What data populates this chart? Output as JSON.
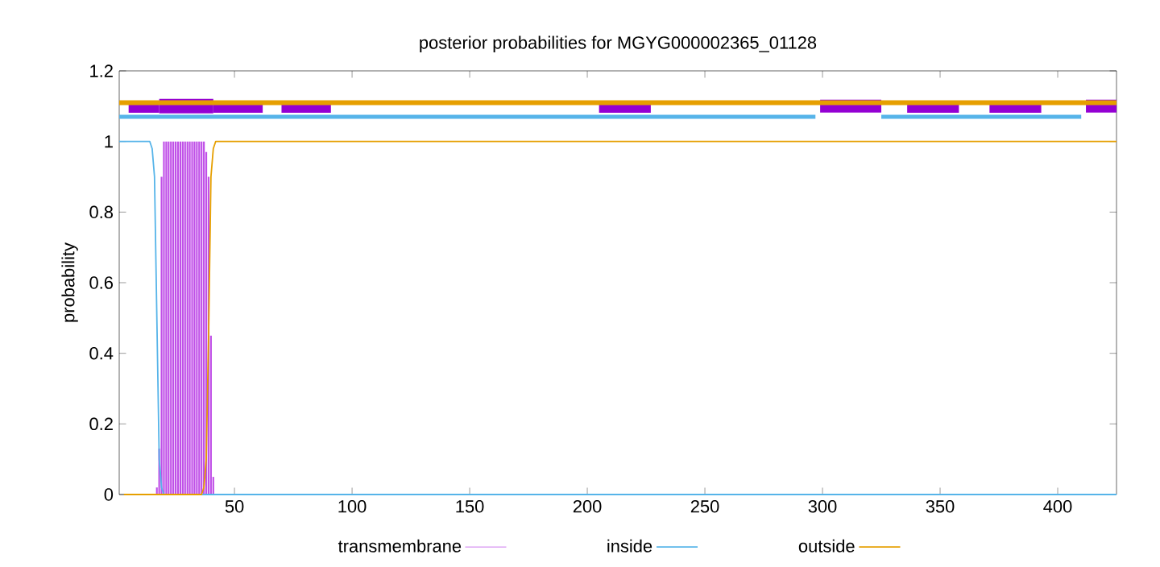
{
  "chart_data": {
    "type": "line",
    "title": "posterior probabilities for MGYG000002365_01128",
    "ylabel": "probability",
    "xlim": [
      1,
      425
    ],
    "ylim": [
      0,
      1.2
    ],
    "xticks": [
      50,
      100,
      150,
      200,
      250,
      300,
      350,
      400
    ],
    "yticks": [
      0,
      0.2,
      0.4,
      0.6,
      0.8,
      1,
      1.2
    ],
    "legend": "bottom",
    "grid": false,
    "series": [
      {
        "name": "transmembrane",
        "type": "bar",
        "color": "#c050e8",
        "x": [
          17,
          18,
          19,
          20,
          21,
          22,
          23,
          24,
          25,
          26,
          27,
          28,
          29,
          30,
          31,
          32,
          33,
          34,
          35,
          36,
          37,
          38,
          39,
          40,
          41
        ],
        "values": [
          0.02,
          0.13,
          0.9,
          1,
          1,
          1,
          1,
          1,
          1,
          1,
          1,
          1,
          1,
          1,
          1,
          1,
          1,
          1,
          1,
          1,
          1,
          0.97,
          0.9,
          0.45,
          0.05
        ]
      },
      {
        "name": "inside",
        "color": "#56b4e9",
        "x": [
          1,
          14,
          15,
          16,
          17,
          18,
          19,
          20,
          425
        ],
        "values": [
          1,
          1,
          0.98,
          0.9,
          0.5,
          0.1,
          0.02,
          0,
          0
        ]
      },
      {
        "name": "outside",
        "color": "#e69f00",
        "x": [
          3,
          36,
          37,
          38,
          39,
          40,
          41,
          42,
          425
        ],
        "values": [
          0,
          0,
          0.02,
          0.1,
          0.45,
          0.9,
          0.98,
          1,
          1
        ]
      },
      {
        "color": "#56b4e9",
        "x": [
          1,
          297
        ],
        "values": [
          1.07,
          1.07
        ]
      },
      {
        "color": "#56b4e9",
        "x": [
          325,
          410
        ],
        "values": [
          1.07,
          1.07
        ]
      },
      {
        "color": "#9400d3",
        "x": [
          5,
          18
        ],
        "values": [
          1.095,
          1.095
        ]
      },
      {
        "color": "#9400d3",
        "x": [
          18,
          41
        ],
        "values": [
          1.1,
          1.1
        ]
      },
      {
        "color": "#9400d3",
        "x": [
          41,
          62
        ],
        "values": [
          1.095,
          1.095
        ]
      },
      {
        "color": "#9400d3",
        "x": [
          70,
          91
        ],
        "values": [
          1.095,
          1.095
        ]
      },
      {
        "color": "#9400d3",
        "x": [
          205,
          227
        ],
        "values": [
          1.095,
          1.095
        ]
      },
      {
        "color": "#9400d3",
        "x": [
          299,
          325
        ],
        "values": [
          1.1,
          1.1
        ]
      },
      {
        "color": "#9400d3",
        "x": [
          336,
          358
        ],
        "values": [
          1.095,
          1.095
        ]
      },
      {
        "color": "#9400d3",
        "x": [
          371,
          393
        ],
        "values": [
          1.095,
          1.095
        ]
      },
      {
        "color": "#9400d3",
        "x": [
          412,
          425
        ],
        "values": [
          1.1,
          1.1
        ]
      },
      {
        "color": "#e69f00",
        "x": [
          1,
          425
        ],
        "values": [
          1.11,
          1.11
        ]
      }
    ]
  }
}
